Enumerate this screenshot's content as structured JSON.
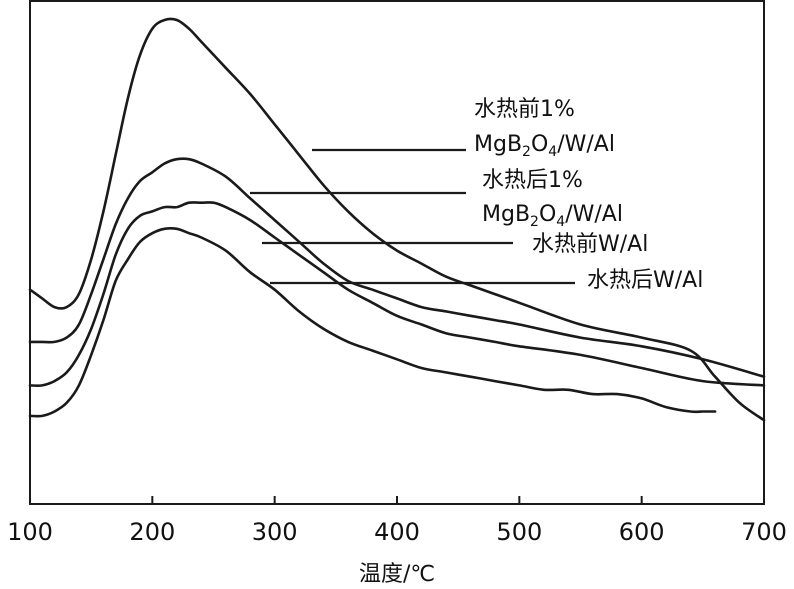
{
  "chart_data": {
    "type": "line",
    "xlabel": "温度/℃",
    "ylabel": "",
    "xlim": [
      100,
      700
    ],
    "xticks": [
      100,
      200,
      300,
      400,
      500,
      600,
      700
    ],
    "y_axis_shown": false,
    "grid": false,
    "series": [
      {
        "name": "水热前1% MgB2O4/W/Al",
        "label_line1": "水热前1%",
        "label_line2_parts": [
          "MgB",
          "2",
          "O",
          "4",
          "/W/Al"
        ],
        "x": [
          100,
          110,
          120,
          130,
          140,
          150,
          160,
          170,
          180,
          190,
          200,
          210,
          220,
          230,
          240,
          260,
          280,
          300,
          320,
          340,
          360,
          380,
          400,
          420,
          440,
          460,
          480,
          500,
          550,
          600,
          640,
          660,
          680,
          700
        ],
        "y": [
          0.38,
          0.36,
          0.34,
          0.34,
          0.37,
          0.45,
          0.56,
          0.69,
          0.82,
          0.92,
          0.98,
          1.0,
          1.0,
          0.98,
          0.95,
          0.89,
          0.83,
          0.76,
          0.69,
          0.62,
          0.56,
          0.51,
          0.47,
          0.44,
          0.41,
          0.39,
          0.37,
          0.35,
          0.3,
          0.27,
          0.24,
          0.18,
          0.12,
          0.08
        ]
      },
      {
        "name": "水热后1% MgB2O4/W/Al",
        "label_line1": "水热后1%",
        "label_line2_parts": [
          "MgB",
          "2",
          "O",
          "4",
          "/W/Al"
        ],
        "x": [
          100,
          110,
          120,
          130,
          140,
          150,
          160,
          170,
          180,
          190,
          200,
          210,
          220,
          230,
          240,
          260,
          280,
          300,
          320,
          340,
          360,
          380,
          400,
          420,
          440,
          460,
          480,
          500,
          550,
          600,
          650,
          700
        ],
        "y": [
          0.26,
          0.26,
          0.26,
          0.27,
          0.3,
          0.37,
          0.45,
          0.53,
          0.59,
          0.63,
          0.65,
          0.67,
          0.68,
          0.68,
          0.67,
          0.64,
          0.59,
          0.54,
          0.49,
          0.44,
          0.4,
          0.38,
          0.36,
          0.34,
          0.33,
          0.32,
          0.31,
          0.3,
          0.27,
          0.25,
          0.22,
          0.18
        ]
      },
      {
        "name": "水热前W/Al",
        "x": [
          100,
          110,
          120,
          130,
          140,
          150,
          160,
          170,
          180,
          190,
          200,
          210,
          220,
          230,
          240,
          250,
          260,
          280,
          300,
          320,
          340,
          360,
          380,
          400,
          420,
          440,
          460,
          480,
          500,
          550,
          600,
          650,
          700
        ],
        "y": [
          0.16,
          0.16,
          0.17,
          0.19,
          0.23,
          0.29,
          0.37,
          0.46,
          0.52,
          0.55,
          0.56,
          0.57,
          0.57,
          0.58,
          0.58,
          0.58,
          0.57,
          0.54,
          0.5,
          0.46,
          0.42,
          0.38,
          0.35,
          0.32,
          0.3,
          0.28,
          0.27,
          0.26,
          0.25,
          0.23,
          0.2,
          0.17,
          0.16
        ]
      },
      {
        "name": "水热后W/Al",
        "x": [
          100,
          110,
          120,
          130,
          140,
          150,
          160,
          170,
          180,
          190,
          200,
          210,
          220,
          230,
          240,
          260,
          280,
          300,
          320,
          340,
          360,
          380,
          400,
          420,
          440,
          460,
          480,
          500,
          520,
          540,
          560,
          580,
          600,
          620,
          640,
          650,
          660
        ],
        "y": [
          0.09,
          0.09,
          0.1,
          0.12,
          0.16,
          0.23,
          0.31,
          0.4,
          0.45,
          0.49,
          0.51,
          0.52,
          0.52,
          0.51,
          0.5,
          0.47,
          0.42,
          0.38,
          0.33,
          0.29,
          0.26,
          0.24,
          0.22,
          0.2,
          0.19,
          0.18,
          0.17,
          0.16,
          0.15,
          0.15,
          0.14,
          0.14,
          0.13,
          0.11,
          0.1,
          0.1,
          0.1
        ]
      }
    ]
  }
}
